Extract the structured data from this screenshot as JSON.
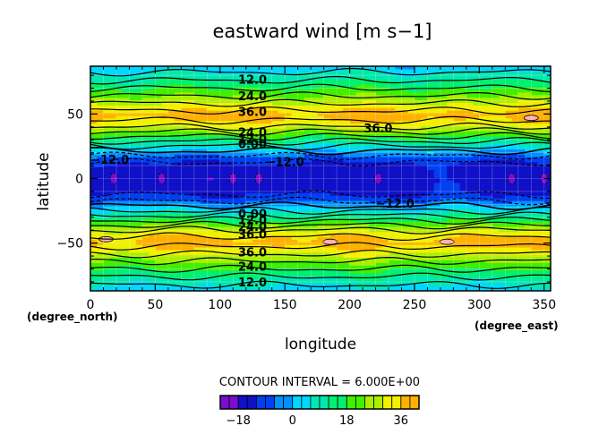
{
  "chart_data": {
    "type": "heatmap",
    "title": "eastward wind [m s−1]",
    "xlabel": "longitude",
    "ylabel": "latitude",
    "x_unit": "(degree_east)",
    "y_unit": "(degree_north)",
    "xlim": [
      0,
      355
    ],
    "ylim": [
      -87,
      87
    ],
    "x_ticks": [
      0,
      50,
      100,
      150,
      200,
      250,
      300,
      350
    ],
    "y_ticks": [
      -50,
      0,
      50
    ],
    "contour_interval_text": "CONTOUR INTERVAL = 6.000E+00",
    "contour_interval": 6,
    "colorbar": {
      "tick_values": [
        -18,
        0,
        18,
        36
      ],
      "tick_labels": [
        "−18",
        "0",
        "18",
        "36"
      ],
      "min": -24,
      "max": 42,
      "colors": [
        "#7a0cd0",
        "#1010c8",
        "#0040f0",
        "#0090ff",
        "#00d8ff",
        "#00e8b0",
        "#00f070",
        "#40f000",
        "#a8f000",
        "#f0f000",
        "#ffb000",
        "#ff6000",
        "#f02020"
      ]
    },
    "zonal_profile": {
      "description_free": true,
      "latitudes": [
        -87,
        -80,
        -70,
        -60,
        -55,
        -50,
        -45,
        -40,
        -35,
        -30,
        -25,
        -20,
        -15,
        -10,
        0,
        10,
        15,
        20,
        25,
        30,
        35,
        40,
        45,
        50,
        55,
        60,
        70,
        80,
        87
      ],
      "values": [
        2,
        8,
        18,
        28,
        34,
        38,
        36,
        30,
        22,
        14,
        6,
        -2,
        -10,
        -14,
        -15,
        -14,
        -10,
        -2,
        6,
        14,
        22,
        30,
        36,
        38,
        34,
        28,
        18,
        8,
        2
      ]
    },
    "contour_labels": [
      {
        "text": "12.0",
        "lon": 125,
        "lat": 77
      },
      {
        "text": "24.0",
        "lon": 125,
        "lat": 64
      },
      {
        "text": "36.0",
        "lon": 125,
        "lat": 52
      },
      {
        "text": "36.0",
        "lon": 222,
        "lat": 39
      },
      {
        "text": "24.0",
        "lon": 125,
        "lat": 36
      },
      {
        "text": "12.0",
        "lon": 125,
        "lat": 31
      },
      {
        "text": "0.00",
        "lon": 125,
        "lat": 27
      },
      {
        "text": "−12.0",
        "lon": 15,
        "lat": 15
      },
      {
        "text": "−12.0",
        "lon": 150,
        "lat": 13
      },
      {
        "text": "−12.0",
        "lon": 235,
        "lat": -19
      },
      {
        "text": "0.00",
        "lon": 125,
        "lat": -27
      },
      {
        "text": "12.0",
        "lon": 125,
        "lat": -32
      },
      {
        "text": "24.0",
        "lon": 125,
        "lat": -37
      },
      {
        "text": "36.0",
        "lon": 125,
        "lat": -43
      },
      {
        "text": "36.0",
        "lon": 125,
        "lat": -57
      },
      {
        "text": "24.0",
        "lon": 125,
        "lat": -68
      },
      {
        "text": "12.0",
        "lon": 125,
        "lat": -80
      }
    ],
    "minima_patches_lon": [
      18,
      55,
      110,
      130,
      222,
      325,
      350
    ],
    "maxima_patches": [
      {
        "lon": 12,
        "lat": -47
      },
      {
        "lon": 185,
        "lat": -49
      },
      {
        "lon": 275,
        "lat": -49
      },
      {
        "lon": 340,
        "lat": 47
      }
    ]
  }
}
